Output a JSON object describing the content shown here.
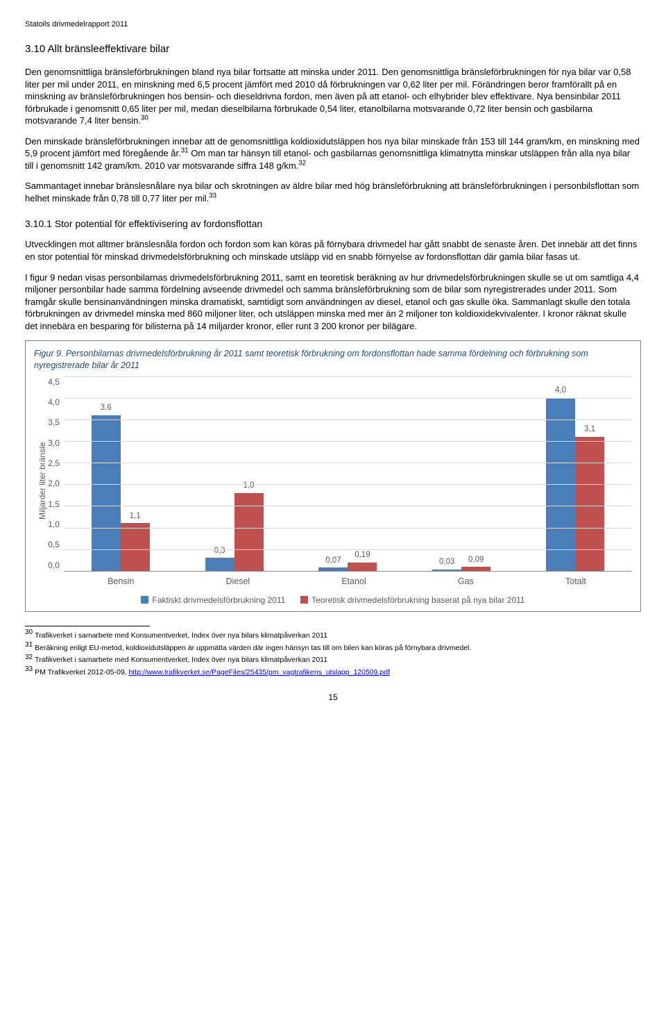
{
  "header": "Statoils drivmedelrapport 2011",
  "section_num_title": "3.10 Allt bränsleeffektivare bilar",
  "p1a": "Den genomsnittliga bränsleförbrukningen bland nya bilar fortsatte att minska under 2011. Den genomsnittliga bränsleförbrukningen för nya bilar var 0,58 liter per mil under 2011, en minskning med 6,5 procent jämfört med 2010 då förbrukningen var 0,62 liter per mil. Förändringen beror framförallt på en minskning av bränsleförbrukningen hos bensin- och dieseldrivna fordon, men även på att etanol- och elhybrider blev effektivare. Nya bensinbilar 2011 förbrukade i genomsnitt 0,65 liter per mil, medan dieselbilarna förbrukade 0,54 liter, etanolbilarna motsvarande 0,72 liter bensin och gasbilarna motsvarande 7,4 liter bensin.",
  "fn30": "30",
  "p2a": "Den minskade bränsleförbrukningen innebar att de genomsnittliga koldioxidutsläppen hos nya bilar minskade från 153 till 144 gram/km, en minskning med 5,9 procent jämfört med föregående år.",
  "fn31": "31",
  "p2b": " Om man tar hänsyn till etanol- och gasbilarnas genomsnittliga klimatnytta minskar utsläppen från alla nya bilar till i genomsnitt 142 gram/km. 2010 var motsvarande siffra 148 g/km.",
  "fn32": "32",
  "p3a": "Sammantaget innebar bränslesnålare nya bilar och skrotningen av äldre bilar med hög bränsleförbrukning att bränsleförbrukningen i personbilsflottan som helhet minskade från 0,78 till 0,77 liter per mil.",
  "fn33": "33",
  "subsection": "3.10.1 Stor potential för effektivisering av fordonsflottan",
  "p4": "Utvecklingen mot alltmer bränslesnåla fordon och fordon som kan köras på förnybara drivmedel har gått snabbt de senaste åren. Det innebär att det finns en stor potential för minskad drivmedelsförbrukning och minskade utsläpp vid en snabb förnyelse av fordonsflottan där gamla bilar fasas ut.",
  "p5": "I figur 9 nedan visas personbilarnas drivmedelsförbrukning 2011, samt en teoretisk beräkning av hur drivmedelsförbrukningen skulle se ut om samtliga 4,4 miljoner personbilar hade samma fördelning avseende drivmedel och samma bränsleförbrukning som de bilar som nyregistrerades under 2011. Som framgår skulle bensinanvändningen minska dramatiskt, samtidigt som användningen av diesel, etanol och gas skulle öka. Sammanlagt skulle den totala förbrukningen av drivmedel minska med 860 miljoner liter, och utsläppen minska med mer än 2 miljoner ton koldioxidekvivalenter. I kronor räknat skulle det innebära en besparing för bilisterna på 14 miljarder kronor, eller runt 3 200 kronor per bilägare.",
  "chart": {
    "title": "Figur 9. Personbilarnas drivmedelsförbrukning år 2011 samt teoretisk förbrukning om fordonsflottan hade samma fördelning och förbrukning som nyregistrerade bilar år 2011",
    "ylabel": "Miljarder liter bränsle",
    "ymax": 4.5,
    "yticks": [
      "4,5",
      "4,0",
      "3,5",
      "3,0",
      "2,5",
      "2,0",
      "1,5",
      "1,0",
      "0,5",
      "0,0"
    ],
    "categories": [
      "Bensin",
      "Diesel",
      "Etanol",
      "Gas",
      "Totalt"
    ],
    "series_a": {
      "label": "Faktiskt drivmedelsförbrukning 2011",
      "color": "#4a7ebb"
    },
    "series_b": {
      "label": "Teoretisk drivmedelsförbrukning baserat på nya bilar 2011",
      "color": "#c0504d"
    },
    "data": [
      {
        "a": 3.6,
        "a_label": "3,6",
        "b": 1.1,
        "b_label": "1,1"
      },
      {
        "a": 0.3,
        "a_label": "0,3",
        "b": 1.8,
        "b_label": "1,8"
      },
      {
        "a": 0.07,
        "a_label": "0,07",
        "b": 0.19,
        "b_label": "0,19"
      },
      {
        "a": 0.03,
        "a_label": "0,03",
        "b": 0.09,
        "b_label": "0,09"
      },
      {
        "a": 4.0,
        "a_label": "4,0",
        "b": 3.1,
        "b_label": "3,1"
      }
    ]
  },
  "footnotes": {
    "n30": "Trafikverket i samarbete med Konsumentverket, Index över nya bilars klimatpåverkan 2011",
    "n31": "Beräkning enligt EU-metod, koldioxidutsläppen är uppmätta värden där ingen hänsyn tas till om bilen kan köras på förnybara drivmedel.",
    "n32": "Trafikverket i samarbete med Konsumentverket, Index över nya bilars klimatpåverkan 2011",
    "n33_pre": "PM Trafikverket 2012-05-09, ",
    "n33_link": "http://www.trafikverket.se/PageFiles/25435/pm_vagtrafikens_utslapp_120509.pdf"
  },
  "page": "15"
}
